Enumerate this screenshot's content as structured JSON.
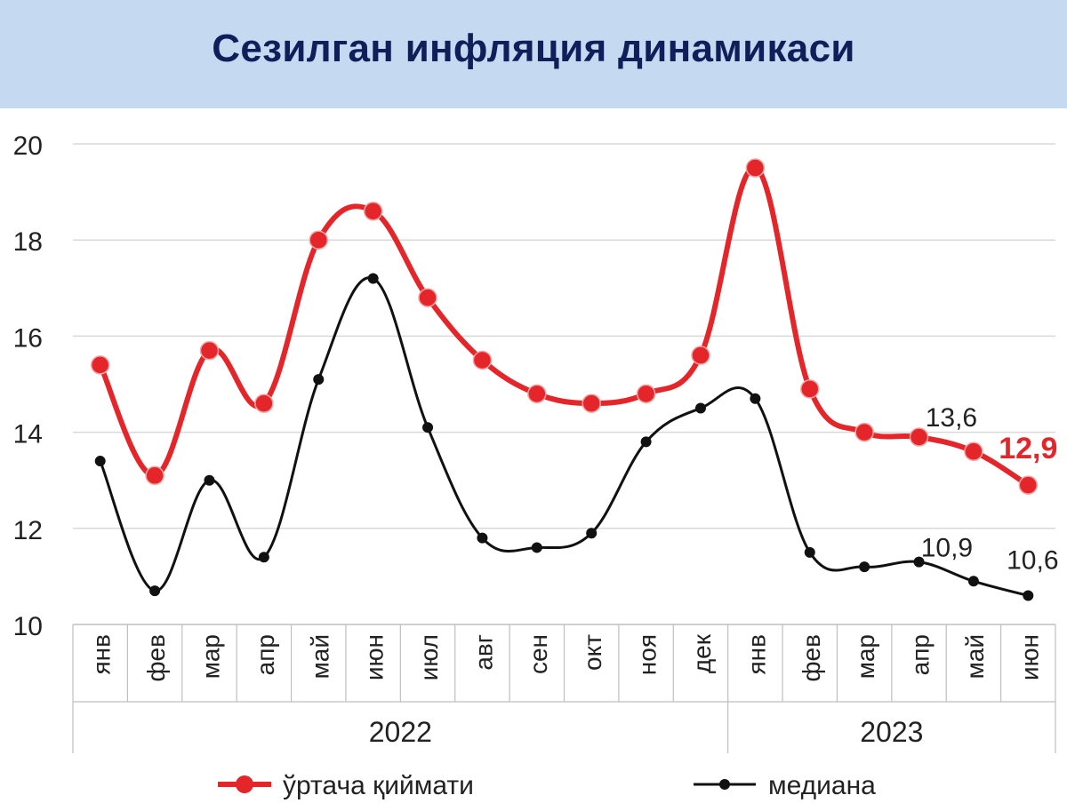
{
  "header": {
    "title": "Сезилган инфляция динамикаси"
  },
  "colors": {
    "header_bg": "#c5d9f1",
    "title": "#0f1f5a",
    "mean_series": "#e4262a",
    "median_series": "#111111",
    "grid": "#d9d9d9"
  },
  "chart_data": {
    "type": "line",
    "title": "Сезилган инфляция динамикаси",
    "categories": [
      "янв",
      "фев",
      "мар",
      "апр",
      "май",
      "июн",
      "июл",
      "авг",
      "сен",
      "окт",
      "ноя",
      "дек",
      "янв",
      "фев",
      "мар",
      "апр",
      "май",
      "июн"
    ],
    "year_groups": [
      {
        "label": "2022",
        "start": 0,
        "end": 11
      },
      {
        "label": "2023",
        "start": 12,
        "end": 17
      }
    ],
    "series": [
      {
        "name": "ўртача қиймати",
        "color": "#e4262a",
        "values": [
          15.4,
          13.1,
          15.7,
          14.6,
          18.0,
          18.6,
          16.8,
          15.5,
          14.8,
          14.6,
          14.8,
          15.6,
          19.5,
          14.9,
          14.0,
          13.9,
          13.6,
          12.9
        ],
        "labels": [
          {
            "index": 16,
            "text": "13,6"
          },
          {
            "index": 17,
            "text": "12,9"
          }
        ]
      },
      {
        "name": "медиана",
        "color": "#111111",
        "values": [
          13.4,
          10.7,
          13.0,
          11.4,
          15.1,
          17.2,
          14.1,
          11.8,
          11.6,
          11.9,
          13.8,
          14.5,
          14.7,
          11.5,
          11.2,
          11.3,
          10.9,
          10.6
        ],
        "labels": [
          {
            "index": 16,
            "text": "10,9"
          },
          {
            "index": 17,
            "text": "10,6"
          }
        ]
      }
    ],
    "ylim": [
      10,
      20
    ],
    "yticks": [
      "10",
      "12",
      "14",
      "16",
      "18",
      "20"
    ],
    "xlabel": "",
    "ylabel": "",
    "grid": true,
    "legend_position": "bottom"
  }
}
